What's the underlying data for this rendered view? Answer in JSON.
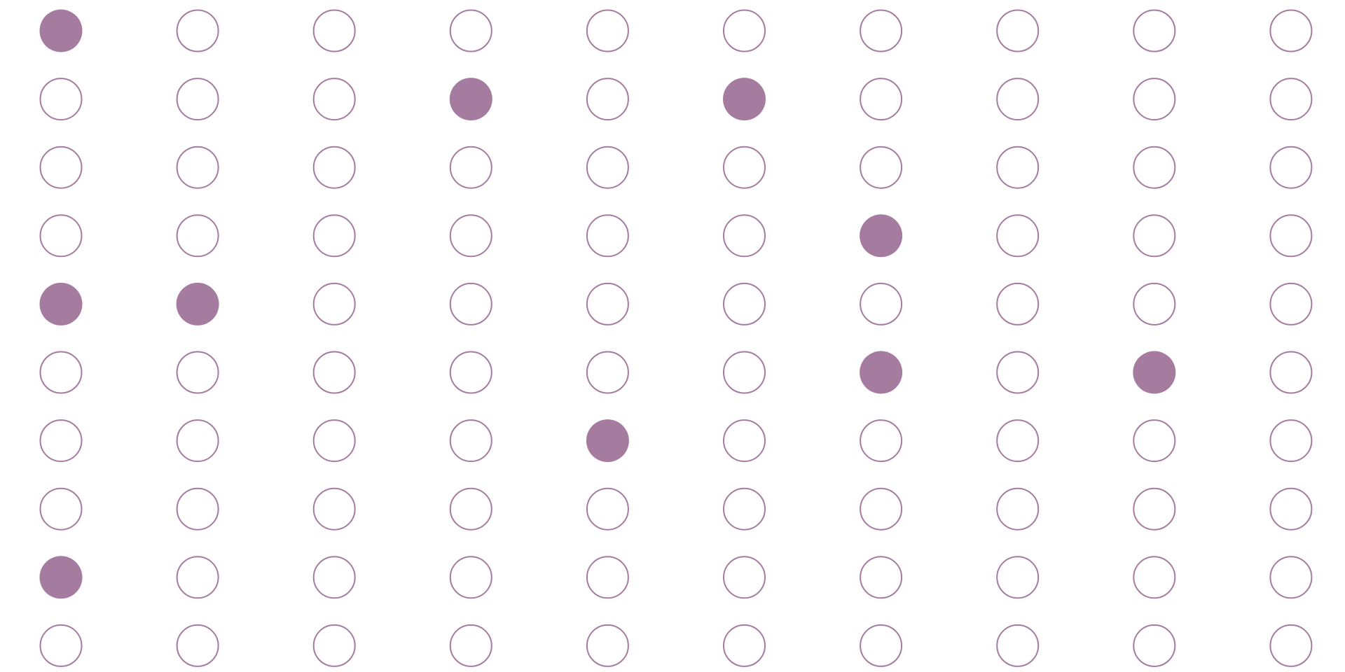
{
  "grid": {
    "rows": 10,
    "columns": 10,
    "filled_color": "#a57c9f",
    "outline_color": "#a57c9f",
    "filled_cells": [
      [
        0,
        0
      ],
      [
        1,
        3
      ],
      [
        1,
        5
      ],
      [
        3,
        6
      ],
      [
        4,
        0
      ],
      [
        4,
        1
      ],
      [
        5,
        6
      ],
      [
        5,
        8
      ],
      [
        6,
        4
      ],
      [
        8,
        0
      ]
    ]
  }
}
